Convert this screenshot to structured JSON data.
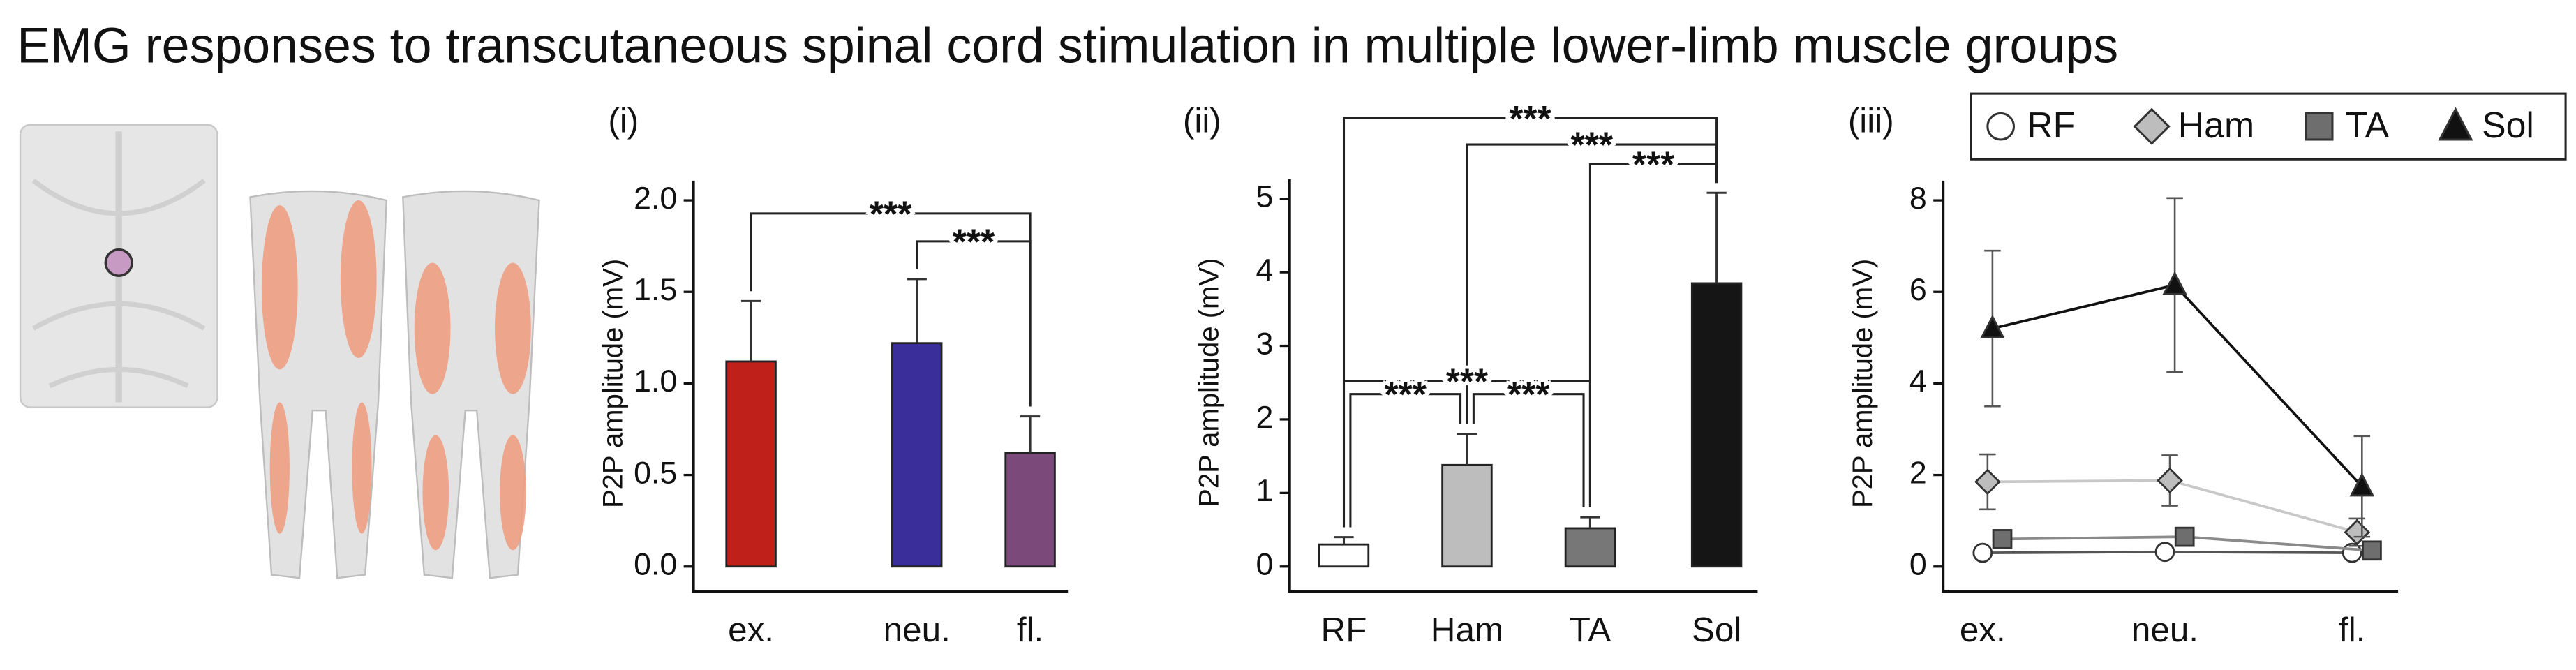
{
  "title": "EMG responses to transcutaneous spinal cord stimulation in multiple lower-limb muscle groups",
  "chart_data": [
    {
      "type": "bar",
      "panel_label": "(i)",
      "ylabel": "P2P amplitude (mV)",
      "categories": [
        "ex.",
        "neu.",
        "fl."
      ],
      "values": [
        1.12,
        1.22,
        0.62
      ],
      "errors": [
        0.33,
        0.35,
        0.2
      ],
      "colors": [
        "#c0201a",
        "#3a2e9a",
        "#7b4a7a"
      ],
      "ylim": [
        0,
        2
      ],
      "yticks": [
        {
          "value": 0,
          "label": "0.0"
        },
        {
          "value": 0.5,
          "label": "0.5"
        },
        {
          "value": 1,
          "label": "1.0"
        },
        {
          "value": 1.5,
          "label": "1.5"
        },
        {
          "value": 2,
          "label": "2.0"
        }
      ],
      "significance": [
        {
          "label": "***",
          "from": 0,
          "to": 2
        },
        {
          "label": "***",
          "from": 1,
          "to": 2
        }
      ]
    },
    {
      "type": "bar",
      "panel_label": "(ii)",
      "ylabel": "P2P amplitude (mV)",
      "categories": [
        "RF",
        "Ham",
        "TA",
        "Sol"
      ],
      "values": [
        0.3,
        1.38,
        0.52,
        3.85
      ],
      "errors": [
        0.1,
        0.42,
        0.15,
        1.23
      ],
      "colors": [
        "#ffffff",
        "#bdbdbd",
        "#777777",
        "#151515"
      ],
      "ylim": [
        0,
        5
      ],
      "yticks": [
        0,
        1,
        2,
        3,
        4,
        5
      ],
      "significance": [
        {
          "label": "***",
          "from": 0,
          "to": 3
        },
        {
          "label": "***",
          "from": 1,
          "to": 3
        },
        {
          "label": "***",
          "from": 2,
          "to": 3
        },
        {
          "label": "***",
          "from": 0,
          "to": 2
        },
        {
          "label": "***",
          "from": 0,
          "to": 1
        },
        {
          "label": "***",
          "from": 1,
          "to": 2
        }
      ]
    },
    {
      "type": "line",
      "panel_label": "(iii)",
      "ylabel": "P2P amplitude (mV)",
      "categories": [
        "ex.",
        "neu.",
        "fl."
      ],
      "series": [
        {
          "name": "RF",
          "color": "#ffffff",
          "line_color": "#555555",
          "marker": "circle",
          "values": [
            0.3,
            0.32,
            0.3
          ],
          "errors": [
            0.05,
            0.05,
            0.05
          ]
        },
        {
          "name": "Ham",
          "color": "#bdbdbd",
          "line_color": "#c8c8c8",
          "marker": "diamond",
          "values": [
            1.85,
            1.88,
            0.75
          ],
          "errors": [
            0.6,
            0.55,
            0.3
          ]
        },
        {
          "name": "TA",
          "color": "#6e6e6e",
          "line_color": "#8a8a8a",
          "marker": "square",
          "values": [
            0.6,
            0.65,
            0.35
          ],
          "errors": [
            0.1,
            0.15,
            0.08
          ]
        },
        {
          "name": "Sol",
          "color": "#111111",
          "line_color": "#111111",
          "marker": "triangle",
          "values": [
            5.2,
            6.15,
            1.75
          ],
          "errors": [
            1.7,
            1.9,
            1.1
          ]
        }
      ],
      "ylim": [
        0,
        8
      ],
      "yticks": [
        0,
        2,
        4,
        6,
        8
      ],
      "legend": "top"
    }
  ]
}
